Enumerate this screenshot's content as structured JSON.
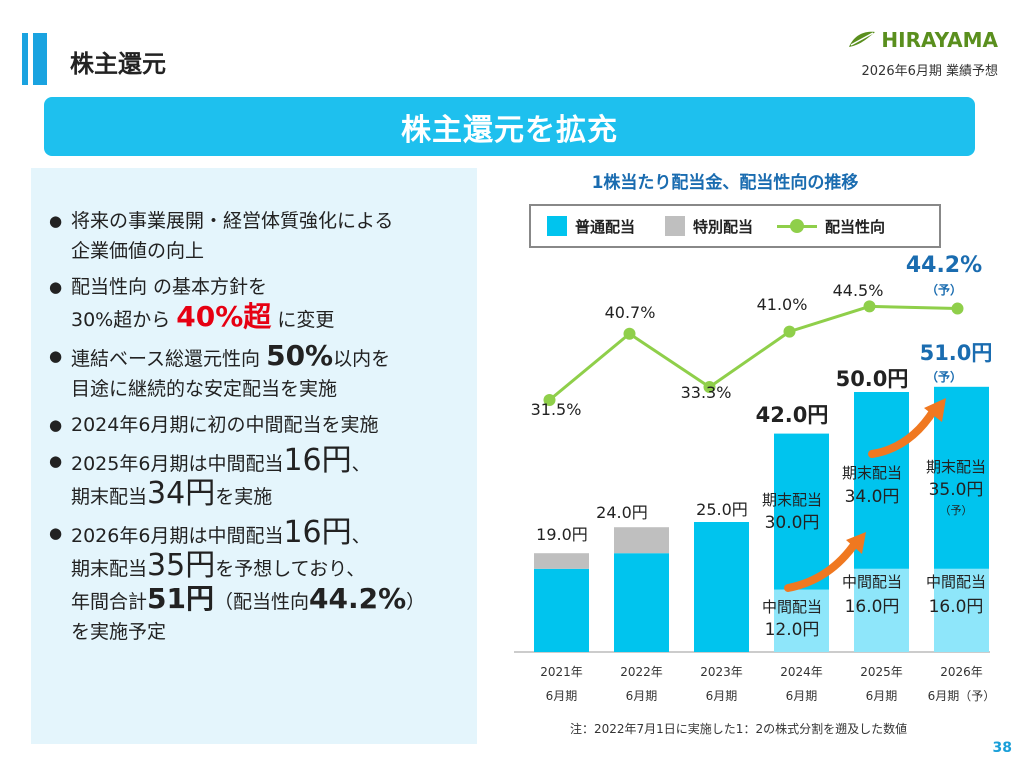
{
  "header": {
    "title": "株主還元",
    "logo_text": "HIRAYAMA",
    "period": "2026年6月期 業績予想"
  },
  "banner": {
    "text": "株主還元を拡充"
  },
  "bullets": {
    "b1_l1": "将来の事業展開・経営体質強化による",
    "b1_l2": "企業価値の向上",
    "b2_l1": "配当性向 の基本方針を",
    "b2_l2_a": "30%超から ",
    "b2_l2_b": "40%超",
    "b2_l2_c": " に変更",
    "b3_l1_a": "連結ベース総還元性向 ",
    "b3_l1_b": "50%",
    "b3_l1_c": "以内を",
    "b3_l2": "目途に継続的な安定配当を実施",
    "b4": "2024年6月期に初の中間配当を実施",
    "b5_l1_a": "2025年6月期は中間配当",
    "b5_l1_b": "16円",
    "b5_l1_c": "、",
    "b5_l2_a": "期末配当",
    "b5_l2_b": "34円",
    "b5_l2_c": "を実施",
    "b6_l1_a": "2026年6月期は中間配当",
    "b6_l1_b": "16円",
    "b6_l1_c": "、",
    "b6_l2_a": "期末配当",
    "b6_l2_b": "35円",
    "b6_l2_c": "を予想しており、",
    "b6_l3_a": "年間合計",
    "b6_l3_b": "51円",
    "b6_l3_c": "（配当性向",
    "b6_l3_d": "44.2%",
    "b6_l3_e": "）",
    "b6_l4": "を実施予定"
  },
  "chart_data": {
    "type": "bar",
    "title": "1株当たり配当金、配当性向の推移",
    "legend": [
      "普通配当",
      "特別配当",
      "配当性向"
    ],
    "categories": [
      [
        "2021年",
        "6月期"
      ],
      [
        "2022年",
        "6月期"
      ],
      [
        "2023年",
        "6月期"
      ],
      [
        "2024年",
        "6月期"
      ],
      [
        "2025年",
        "6月期"
      ],
      [
        "2026年",
        "6月期（予）"
      ]
    ],
    "series": [
      {
        "name": "普通配当",
        "values": [
          16,
          19,
          25,
          42,
          50,
          51
        ]
      },
      {
        "name": "特別配当",
        "values": [
          3,
          5,
          0,
          0,
          0,
          0
        ]
      },
      {
        "name": "配当性向",
        "values": [
          31.5,
          40.7,
          33.3,
          41.0,
          44.5,
          44.2
        ]
      }
    ],
    "interim": [
      null,
      null,
      null,
      12,
      16,
      16
    ],
    "year_end": [
      null,
      null,
      null,
      30,
      34,
      35
    ],
    "total_labels": [
      "19.0円",
      "24.0円",
      "25.0円",
      "42.0円",
      "50.0円",
      "51.0円"
    ],
    "ratio_labels": [
      "31.5%",
      "40.7%",
      "33.3%",
      "41.0%",
      "44.5%",
      "44.2%"
    ],
    "interim_label": "中間配当",
    "year_end_label": "期末配当",
    "interim_values": [
      "12.0円",
      "16.0円",
      "16.0円"
    ],
    "year_end_values": [
      "30.0円",
      "34.0円",
      "35.0円"
    ],
    "forecast_mark": "（予）",
    "colors": {
      "regular": "#00c4ee",
      "interim": "#8ee6fa",
      "special": "#bfbfbf",
      "ratio": "#8fcf4a",
      "highlight": "#1a6cb0",
      "arrow": "#f07820"
    }
  },
  "footnote": "注：2022年7月1日に実施した1：2の株式分割を遡及した数値",
  "page_number": "38"
}
